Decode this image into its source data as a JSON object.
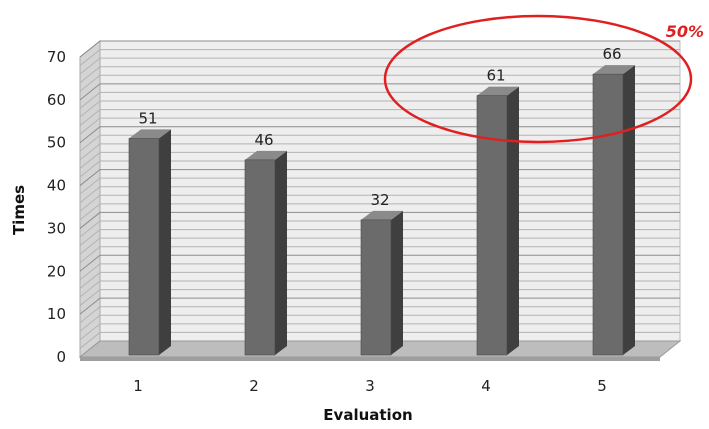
{
  "chart_data": {
    "type": "bar",
    "categories": [
      "1",
      "2",
      "3",
      "4",
      "5"
    ],
    "values": [
      51,
      46,
      32,
      61,
      66
    ],
    "xlabel": "Evaluation",
    "ylabel": "Times",
    "ylim": [
      0,
      70
    ],
    "yticks": [
      0,
      10,
      20,
      30,
      40,
      50,
      60,
      70
    ],
    "grid": true,
    "three_d": true,
    "bar_color": "#6b6b6b",
    "annotation": {
      "text": "50%",
      "color": "#e02020",
      "highlights_categories": [
        "4",
        "5"
      ]
    }
  }
}
